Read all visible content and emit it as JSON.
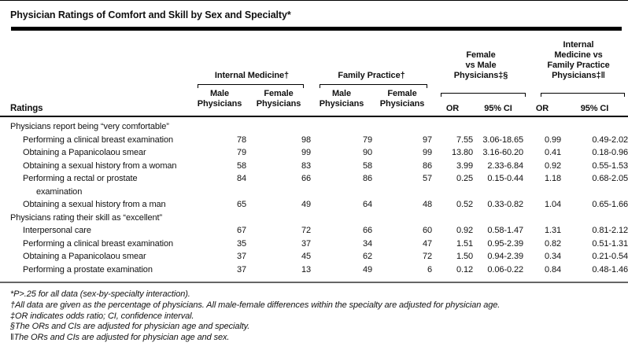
{
  "title": "Physician Ratings of Comfort and Skill by Sex and Specialty*",
  "table": {
    "ratings_header": "Ratings",
    "groups": [
      {
        "label": "Internal Medicine†",
        "col1": "Male\nPhysicians",
        "col2": "Female\nPhysicians"
      },
      {
        "label": "Family Practice†",
        "col1": "Male\nPhysicians",
        "col2": "Female\nPhysicians"
      },
      {
        "label": "Female\nvs Male\nPhysicians‡§",
        "col1": "OR",
        "col2": "95% CI"
      },
      {
        "label": "Internal\nMedicine vs\nFamily Practice\nPhysicians‡‖",
        "col1": "OR",
        "col2": "95% CI"
      }
    ],
    "rows": [
      {
        "type": "section",
        "label": "Physicians report being “very comfortable”"
      },
      {
        "type": "item",
        "label": "Performing a clinical breast examination",
        "values": [
          "78",
          "98",
          "79",
          "97",
          "7.55",
          "3.06-18.65",
          "0.99",
          "0.49-2.02"
        ]
      },
      {
        "type": "item",
        "label": "Obtaining a Papanicolaou smear",
        "values": [
          "79",
          "99",
          "90",
          "99",
          "13.80",
          "3.16-60.20",
          "0.41",
          "0.18-0.96"
        ]
      },
      {
        "type": "item",
        "label": "Obtaining a sexual history from a woman",
        "values": [
          "58",
          "83",
          "58",
          "86",
          "3.99",
          "2.33-6.84",
          "0.92",
          "0.55-1.53"
        ]
      },
      {
        "type": "item",
        "label": "Performing a rectal or prostate\nexamination",
        "values": [
          "84",
          "66",
          "86",
          "57",
          "0.25",
          "0.15-0.44",
          "1.18",
          "0.68-2.05"
        ]
      },
      {
        "type": "item",
        "label": "Obtaining a sexual history from a man",
        "values": [
          "65",
          "49",
          "64",
          "48",
          "0.52",
          "0.33-0.82",
          "1.04",
          "0.65-1.66"
        ]
      },
      {
        "type": "section",
        "label": "Physicians rating their skill as “excellent”"
      },
      {
        "type": "item",
        "label": "Interpersonal care",
        "values": [
          "67",
          "72",
          "66",
          "60",
          "0.92",
          "0.58-1.47",
          "1.31",
          "0.81-2.12"
        ]
      },
      {
        "type": "item",
        "label": "Performing a clinical breast examination",
        "values": [
          "35",
          "37",
          "34",
          "47",
          "1.51",
          "0.95-2.39",
          "0.82",
          "0.51-1.31"
        ]
      },
      {
        "type": "item",
        "label": "Obtaining a Papanicolaou smear",
        "values": [
          "37",
          "45",
          "62",
          "72",
          "1.50",
          "0.94-2.39",
          "0.34",
          "0.21-0.54"
        ]
      },
      {
        "type": "item",
        "label": "Performing a prostate examination",
        "values": [
          "37",
          "13",
          "49",
          "6",
          "0.12",
          "0.06-0.22",
          "0.84",
          "0.48-1.46"
        ]
      }
    ]
  },
  "footnotes": [
    "*P>.25 for all data (sex-by-specialty interaction).",
    "†All data are given as the percentage of physicians. All male-female differences within the specialty are adjusted for physician age.",
    "‡OR indicates odds ratio; CI, confidence interval.",
    "§The ORs and CIs are adjusted for physician age and specialty.",
    "‖The ORs and CIs are adjusted for physician age and sex."
  ]
}
